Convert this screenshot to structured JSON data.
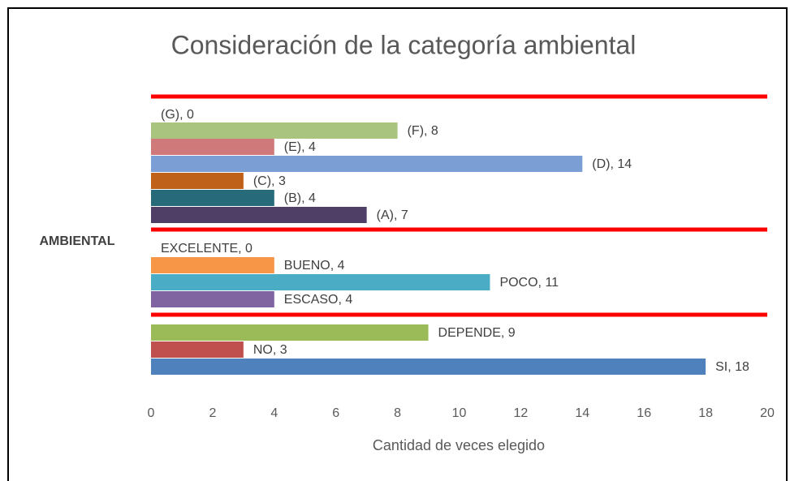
{
  "chart_data": {
    "type": "bar",
    "orientation": "horizontal",
    "title": "Consideración de la categoría ambiental",
    "x_label": "Cantidad de veces elegido",
    "categories": [
      "AMBIENTAL"
    ],
    "xlim": [
      0,
      20
    ],
    "xticks": [
      0,
      2,
      4,
      6,
      8,
      10,
      12,
      14,
      16,
      18,
      20
    ],
    "grid": false,
    "series": [
      {
        "name": "(G)",
        "color": "#9bbb59",
        "values": [
          0
        ],
        "value_labels": [
          "(G), 0"
        ]
      },
      {
        "name": "(F)",
        "color": "#a9c47f",
        "values": [
          8
        ],
        "value_labels": [
          "(F), 8"
        ]
      },
      {
        "name": "(E)",
        "color": "#d0797a",
        "values": [
          4
        ],
        "value_labels": [
          "(E), 4"
        ]
      },
      {
        "name": "(D)",
        "color": "#7b9fd4",
        "values": [
          14
        ],
        "value_labels": [
          "(D), 14"
        ]
      },
      {
        "name": "(C)",
        "color": "#c0611a",
        "values": [
          3
        ],
        "value_labels": [
          "(C), 3"
        ]
      },
      {
        "name": "(B)",
        "color": "#276a7a",
        "values": [
          4
        ],
        "value_labels": [
          "(B), 4"
        ]
      },
      {
        "name": "(A)",
        "color": "#4f3f66",
        "values": [
          7
        ],
        "value_labels": [
          "(A), 7"
        ]
      },
      {
        "name": "EXCELENTE",
        "color": "#4bacc6",
        "values": [
          0
        ],
        "value_labels": [
          "EXCELENTE, 0"
        ]
      },
      {
        "name": "BUENO",
        "color": "#f79646",
        "values": [
          4
        ],
        "value_labels": [
          "BUENO, 4"
        ]
      },
      {
        "name": "POCO",
        "color": "#4bacc6",
        "values": [
          11
        ],
        "value_labels": [
          "POCO, 11"
        ]
      },
      {
        "name": "ESCASO",
        "color": "#8064a2",
        "values": [
          4
        ],
        "value_labels": [
          "ESCASO, 4"
        ]
      },
      {
        "name": "DEPENDE",
        "color": "#9bbb59",
        "values": [
          9
        ],
        "value_labels": [
          "DEPENDE, 9"
        ]
      },
      {
        "name": "NO",
        "color": "#c0504d",
        "values": [
          3
        ],
        "value_labels": [
          "NO, 3"
        ]
      },
      {
        "name": "SI",
        "color": "#4f81bd",
        "values": [
          18
        ],
        "value_labels": [
          "SI, 18"
        ]
      }
    ]
  }
}
